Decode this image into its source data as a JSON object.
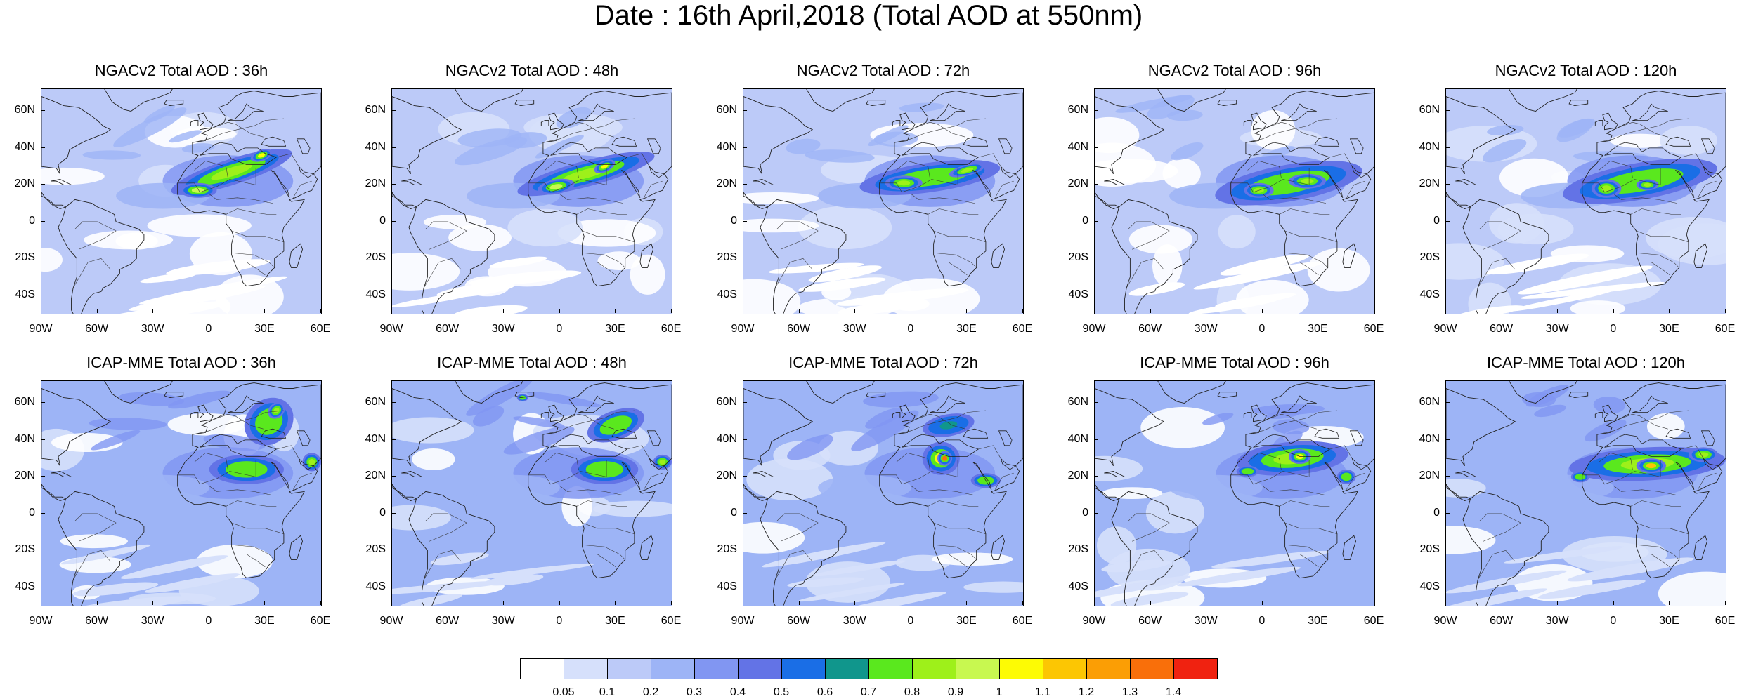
{
  "title": "Date : 16th April,2018 (Total AOD at 550nm)",
  "panels": [
    {
      "title": "NGACv2 Total AOD : 36h",
      "model": "NGACv2",
      "lead": "36h"
    },
    {
      "title": "NGACv2 Total AOD : 48h",
      "model": "NGACv2",
      "lead": "48h"
    },
    {
      "title": "NGACv2 Total AOD : 72h",
      "model": "NGACv2",
      "lead": "72h"
    },
    {
      "title": "NGACv2 Total AOD : 96h",
      "model": "NGACv2",
      "lead": "96h"
    },
    {
      "title": "NGACv2 Total AOD : 120h",
      "model": "NGACv2",
      "lead": "120h"
    },
    {
      "title": "ICAP-MME Total AOD : 36h",
      "model": "ICAP-MME",
      "lead": "36h"
    },
    {
      "title": "ICAP-MME Total AOD : 48h",
      "model": "ICAP-MME",
      "lead": "48h"
    },
    {
      "title": "ICAP-MME Total AOD : 72h",
      "model": "ICAP-MME",
      "lead": "72h"
    },
    {
      "title": "ICAP-MME Total AOD : 96h",
      "model": "ICAP-MME",
      "lead": "96h"
    },
    {
      "title": "ICAP-MME Total AOD : 120h",
      "model": "ICAP-MME",
      "lead": "120h"
    }
  ],
  "lat_labels": [
    "60N",
    "40N",
    "20N",
    "0",
    "20S",
    "40S"
  ],
  "lon_labels": [
    "90W",
    "60W",
    "30W",
    "0",
    "30E",
    "60E"
  ],
  "colorbar": {
    "labels": [
      "0.05",
      "0.1",
      "0.2",
      "0.3",
      "0.4",
      "0.5",
      "0.6",
      "0.7",
      "0.8",
      "0.9",
      "1",
      "1.1",
      "1.2",
      "1.3",
      "1.4"
    ],
    "colors": [
      "#ffffff",
      "#d6e0fb",
      "#bccaf8",
      "#9db4f6",
      "#8196f2",
      "#6373e6",
      "#1a6ee6",
      "#10968c",
      "#5ae81e",
      "#9ef01a",
      "#c8f850",
      "#fdfb04",
      "#fcc603",
      "#fb9e05",
      "#f96f0a",
      "#f02210"
    ]
  }
}
